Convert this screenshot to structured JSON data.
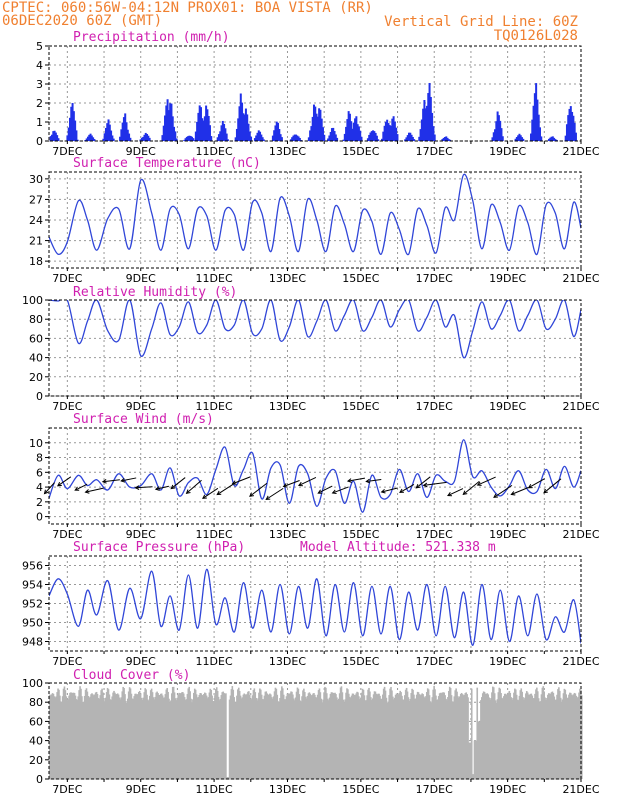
{
  "header": {
    "line1_left": "CPTEC:   060:56W-04:12N   PROX01: BOA VISTA (RR)",
    "line2_left": "06DEC2020 60Z (GMT)",
    "line2_right": "Vertical Grid Line: 60Z",
    "line3_right": "TQ0126L028"
  },
  "colors": {
    "line": "#3046d8",
    "bar": "#2030e8",
    "cloud": "#b4b4b4",
    "header": "#f08030",
    "title": "#d020b0"
  },
  "x_labels": [
    "7DEC",
    "9DEC",
    "11DEC",
    "13DEC",
    "15DEC",
    "17DEC",
    "19DEC",
    "21DEC"
  ],
  "chart_data": [
    {
      "id": "precip",
      "type": "bar",
      "title": "Precipitation (mm/h)",
      "ylim": [
        0,
        5
      ],
      "yticks": [
        0,
        1,
        2,
        3,
        4,
        5
      ],
      "x_range_days": [
        6.5,
        21.0
      ],
      "peaks": [
        {
          "day": 6.6,
          "value": 0.8
        },
        {
          "day": 7.1,
          "value": 2.3
        },
        {
          "day": 7.6,
          "value": 0.4
        },
        {
          "day": 8.1,
          "value": 1.3
        },
        {
          "day": 8.55,
          "value": 1.8
        },
        {
          "day": 9.1,
          "value": 0.6
        },
        {
          "day": 9.7,
          "value": 2.3
        },
        {
          "day": 9.8,
          "value": 2.7
        },
        {
          "day": 10.3,
          "value": 0.5
        },
        {
          "day": 10.6,
          "value": 2.3
        },
        {
          "day": 10.75,
          "value": 2.8
        },
        {
          "day": 11.2,
          "value": 1.4
        },
        {
          "day": 11.7,
          "value": 2.6
        },
        {
          "day": 11.85,
          "value": 2.0
        },
        {
          "day": 12.2,
          "value": 0.6
        },
        {
          "day": 12.7,
          "value": 1.3
        },
        {
          "day": 13.2,
          "value": 0.6
        },
        {
          "day": 13.7,
          "value": 2.6
        },
        {
          "day": 13.85,
          "value": 1.9
        },
        {
          "day": 14.2,
          "value": 0.8
        },
        {
          "day": 14.65,
          "value": 1.7
        },
        {
          "day": 14.85,
          "value": 2.0
        },
        {
          "day": 15.3,
          "value": 1.0
        },
        {
          "day": 15.7,
          "value": 1.9
        },
        {
          "day": 15.85,
          "value": 1.5
        },
        {
          "day": 16.3,
          "value": 0.5
        },
        {
          "day": 16.7,
          "value": 2.3
        },
        {
          "day": 16.85,
          "value": 3.5
        },
        {
          "day": 17.3,
          "value": 0.3
        },
        {
          "day": 18.7,
          "value": 2.0
        },
        {
          "day": 19.3,
          "value": 0.4
        },
        {
          "day": 19.75,
          "value": 3.3
        },
        {
          "day": 20.2,
          "value": 0.3
        },
        {
          "day": 20.7,
          "value": 3.1
        }
      ]
    },
    {
      "id": "temp",
      "type": "line",
      "title": "Surface Temperature (nC)",
      "ylim": [
        17,
        31
      ],
      "yticks": [
        18,
        21,
        24,
        27,
        30
      ],
      "x": [
        6.5,
        6.75,
        7.0,
        7.3,
        7.55,
        7.8,
        8.1,
        8.4,
        8.7,
        9.0,
        9.3,
        9.55,
        9.8,
        10.05,
        10.3,
        10.55,
        10.8,
        11.05,
        11.3,
        11.55,
        11.8,
        12.05,
        12.3,
        12.55,
        12.8,
        13.05,
        13.3,
        13.55,
        13.8,
        14.05,
        14.3,
        14.55,
        14.8,
        15.05,
        15.3,
        15.55,
        15.8,
        16.05,
        16.3,
        16.55,
        16.8,
        17.05,
        17.3,
        17.55,
        17.8,
        18.05,
        18.3,
        18.55,
        18.8,
        19.05,
        19.3,
        19.55,
        19.8,
        20.05,
        20.3,
        20.55,
        20.8,
        21.0
      ],
      "y": [
        21.5,
        19.0,
        20.8,
        26.8,
        24.0,
        19.6,
        24.2,
        25.6,
        19.8,
        29.8,
        25.0,
        19.6,
        25.6,
        24.8,
        19.8,
        25.6,
        24.6,
        19.6,
        25.4,
        24.8,
        19.6,
        26.6,
        25.0,
        19.4,
        27.2,
        24.6,
        19.4,
        27.0,
        24.0,
        19.4,
        26.0,
        23.4,
        19.4,
        25.4,
        23.8,
        19.0,
        25.0,
        22.6,
        19.0,
        25.6,
        23.2,
        19.2,
        25.8,
        24.0,
        30.6,
        26.8,
        19.8,
        26.2,
        23.6,
        19.6,
        26.0,
        23.6,
        19.0,
        26.2,
        25.0,
        19.8,
        26.6,
        22.8
      ]
    },
    {
      "id": "rh",
      "type": "line",
      "title": "Relative Humidity (%)",
      "ylim": [
        0,
        100
      ],
      "yticks": [
        0,
        20,
        40,
        60,
        80,
        100
      ],
      "x": [
        6.5,
        6.75,
        7.0,
        7.3,
        7.55,
        7.8,
        8.1,
        8.4,
        8.7,
        9.0,
        9.3,
        9.55,
        9.8,
        10.05,
        10.3,
        10.55,
        10.8,
        11.05,
        11.3,
        11.55,
        11.8,
        12.05,
        12.3,
        12.55,
        12.8,
        13.05,
        13.3,
        13.55,
        13.8,
        14.05,
        14.3,
        14.55,
        14.8,
        15.05,
        15.3,
        15.55,
        15.8,
        16.05,
        16.3,
        16.55,
        16.8,
        17.05,
        17.3,
        17.55,
        17.8,
        18.05,
        18.3,
        18.55,
        18.8,
        19.05,
        19.3,
        19.55,
        19.8,
        20.05,
        20.3,
        20.55,
        20.8,
        21.0
      ],
      "y": [
        100,
        99,
        100,
        55,
        78,
        100,
        68,
        58,
        100,
        42,
        70,
        97,
        64,
        72,
        98,
        66,
        74,
        100,
        70,
        74,
        100,
        65,
        70,
        100,
        58,
        72,
        100,
        62,
        78,
        100,
        68,
        84,
        100,
        68,
        82,
        100,
        72,
        90,
        100,
        68,
        82,
        100,
        72,
        84,
        40,
        68,
        98,
        70,
        84,
        100,
        68,
        84,
        100,
        70,
        80,
        100,
        62,
        90
      ]
    },
    {
      "id": "wind",
      "type": "line",
      "title": "Surface Wind (m/s)",
      "ylim": [
        -1,
        12
      ],
      "yticks": [
        0,
        2,
        4,
        6,
        8,
        10
      ],
      "x": [
        6.5,
        6.75,
        7.0,
        7.3,
        7.55,
        7.8,
        8.1,
        8.4,
        8.7,
        9.0,
        9.3,
        9.55,
        9.8,
        10.05,
        10.3,
        10.55,
        10.8,
        11.05,
        11.3,
        11.55,
        11.8,
        12.05,
        12.3,
        12.55,
        12.8,
        13.05,
        13.3,
        13.55,
        13.8,
        14.05,
        14.3,
        14.55,
        14.8,
        15.05,
        15.3,
        15.55,
        15.8,
        16.05,
        16.3,
        16.55,
        16.8,
        17.05,
        17.3,
        17.55,
        17.8,
        18.05,
        18.3,
        18.55,
        18.8,
        19.05,
        19.3,
        19.55,
        19.8,
        20.05,
        20.3,
        20.55,
        20.8,
        21.0
      ],
      "y": [
        2.5,
        5.6,
        3.8,
        5.6,
        4.2,
        5.0,
        3.6,
        5.8,
        4.0,
        4.2,
        5.8,
        3.6,
        6.6,
        2.8,
        4.6,
        5.2,
        3.0,
        6.4,
        9.4,
        4.2,
        6.4,
        8.6,
        2.4,
        6.6,
        7.0,
        1.8,
        6.8,
        5.8,
        1.4,
        5.2,
        6.2,
        1.8,
        4.8,
        0.6,
        5.6,
        2.6,
        3.0,
        6.4,
        3.4,
        5.8,
        2.6,
        5.6,
        4.8,
        4.8,
        10.4,
        5.4,
        6.2,
        4.0,
        2.8,
        4.2,
        6.2,
        3.6,
        3.4,
        6.4,
        3.8,
        6.8,
        4.0,
        6.2
      ],
      "arrow_u": [
        -2.0,
        -2.6,
        -2.4,
        -3.6,
        -3.4,
        -3.0,
        -3.4,
        -2.6,
        -2.8,
        -3.0,
        -3.0,
        -3.4,
        -3.6,
        -3.4,
        -3.4,
        -3.2,
        -3.4,
        -2.8,
        -3.2,
        -3.4,
        -3.0,
        -3.2,
        -2.8,
        -2.8,
        -4.6,
        -3.0,
        -3.2,
        -3.6,
        -3.6,
        -3.4,
        -3.2,
        -3.4
      ],
      "arrow_v": [
        -2.2,
        -1.8,
        -1.2,
        -0.8,
        -0.4,
        -0.6,
        -0.2,
        -0.6,
        -2.2,
        -2.6,
        -2.0,
        -2.2,
        -1.4,
        -2.6,
        -2.2,
        -1.2,
        -1.6,
        -1.4,
        -1.2,
        -0.6,
        -0.4,
        -0.8,
        -1.6,
        -2.2,
        -0.6,
        -1.4,
        -2.6,
        -1.6,
        -2.4,
        -1.4,
        -1.8,
        -2.8
      ]
    },
    {
      "id": "pres",
      "type": "line",
      "title": "Surface Pressure (hPa)",
      "subtitle": "Model Altitude: 521.338 m",
      "ylim": [
        947,
        957
      ],
      "yticks": [
        948,
        950,
        952,
        954,
        956
      ],
      "x": [
        6.5,
        6.75,
        7.0,
        7.3,
        7.55,
        7.8,
        8.1,
        8.4,
        8.7,
        9.0,
        9.3,
        9.55,
        9.8,
        10.05,
        10.3,
        10.55,
        10.8,
        11.05,
        11.3,
        11.55,
        11.8,
        12.05,
        12.3,
        12.55,
        12.8,
        13.05,
        13.3,
        13.55,
        13.8,
        14.05,
        14.3,
        14.55,
        14.8,
        15.05,
        15.3,
        15.55,
        15.8,
        16.05,
        16.3,
        16.55,
        16.8,
        17.05,
        17.3,
        17.55,
        17.8,
        18.05,
        18.3,
        18.55,
        18.8,
        19.05,
        19.3,
        19.55,
        19.8,
        20.05,
        20.3,
        20.55,
        20.8,
        21.0
      ],
      "y": [
        952.8,
        954.6,
        953.0,
        949.6,
        953.4,
        950.8,
        954.4,
        949.2,
        953.6,
        950.4,
        955.4,
        949.6,
        952.8,
        949.2,
        955.0,
        949.4,
        955.6,
        949.8,
        952.6,
        949.0,
        954.2,
        949.4,
        953.4,
        949.0,
        954.0,
        948.8,
        953.8,
        949.4,
        954.6,
        948.6,
        954.0,
        949.0,
        954.2,
        948.6,
        953.8,
        948.8,
        953.8,
        948.2,
        953.2,
        949.2,
        954.0,
        948.6,
        953.8,
        948.4,
        953.2,
        947.6,
        954.0,
        948.2,
        953.4,
        948.0,
        952.8,
        948.6,
        953.0,
        948.2,
        950.6,
        949.0,
        952.4,
        947.8
      ]
    },
    {
      "id": "cloud",
      "type": "bar",
      "title": "Cloud Cover (%)",
      "ylim": [
        0,
        100
      ],
      "yticks": [
        0,
        20,
        40,
        60,
        80,
        100
      ],
      "base_value": 90,
      "gaps": [
        {
          "day": 11.35,
          "value": 2
        },
        {
          "day": 17.95,
          "value": 38
        },
        {
          "day": 18.05,
          "value": 5
        },
        {
          "day": 18.1,
          "value": 40
        },
        {
          "day": 18.2,
          "value": 60
        }
      ]
    }
  ]
}
